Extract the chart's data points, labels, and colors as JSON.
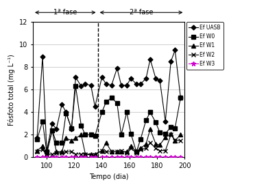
{
  "title_phase1": "1ª fase",
  "title_phase2": "2ª fase",
  "xlabel": "Tempo (dia)",
  "ylabel": "Fósfoto total (mg L⁻¹)",
  "xlim": [
    90,
    200
  ],
  "ylim": [
    0,
    12
  ],
  "yticks": [
    0,
    2,
    4,
    6,
    8,
    10,
    12
  ],
  "xticks": [
    100,
    120,
    140,
    160,
    180,
    200
  ],
  "dashed_vline": 137,
  "phase1_x_start": 90,
  "phase1_x_end": 137,
  "phase2_x_start": 137,
  "phase2_x_end": 200,
  "series": {
    "Ef UASB": {
      "x": [
        93,
        97,
        100,
        104,
        107,
        111,
        114,
        118,
        121,
        125,
        128,
        132,
        135,
        140,
        143,
        147,
        151,
        154,
        158,
        161,
        165,
        168,
        172,
        175,
        179,
        182,
        186,
        190,
        193,
        197
      ],
      "y": [
        1.7,
        8.9,
        0.6,
        3.0,
        2.5,
        4.7,
        4.0,
        2.5,
        7.1,
        6.3,
        6.5,
        6.4,
        4.5,
        7.1,
        6.5,
        6.4,
        7.9,
        6.4,
        6.4,
        7.0,
        6.5,
        6.5,
        7.0,
        8.7,
        7.0,
        6.8,
        3.2,
        8.5,
        9.5,
        5.3
      ],
      "color": "#000000",
      "marker": "D",
      "markersize": 3.5,
      "linestyle": "-",
      "linewidth": 0.8
    },
    "Ef W0": {
      "x": [
        93,
        97,
        100,
        104,
        107,
        111,
        114,
        118,
        121,
        125,
        128,
        132,
        135,
        140,
        143,
        147,
        151,
        154,
        158,
        161,
        165,
        168,
        172,
        175,
        179,
        182,
        186,
        190,
        193,
        197
      ],
      "y": [
        1.6,
        3.2,
        0.5,
        2.4,
        1.3,
        1.3,
        3.9,
        2.6,
        6.3,
        2.8,
        2.0,
        2.0,
        1.9,
        4.0,
        4.9,
        5.3,
        4.8,
        2.0,
        4.0,
        2.1,
        0.5,
        1.6,
        3.3,
        4.0,
        3.1,
        2.2,
        2.1,
        2.7,
        2.6,
        5.3
      ],
      "color": "#000000",
      "marker": "s",
      "markersize": 4.5,
      "linestyle": "-",
      "linewidth": 0.8
    },
    "Ef W1": {
      "x": [
        93,
        97,
        100,
        104,
        107,
        111,
        114,
        118,
        121,
        125,
        128,
        132,
        135,
        140,
        143,
        147,
        151,
        154,
        158,
        161,
        165,
        168,
        172,
        175,
        179,
        182,
        186,
        190,
        193,
        197
      ],
      "y": [
        0.6,
        1.0,
        0.3,
        2.4,
        0.5,
        0.5,
        1.7,
        1.5,
        1.7,
        2.0,
        0.3,
        0.3,
        0.3,
        0.6,
        1.3,
        0.5,
        0.5,
        0.5,
        0.5,
        1.0,
        0.5,
        0.8,
        1.2,
        2.5,
        1.2,
        1.1,
        1.8,
        2.1,
        1.5,
        2.0
      ],
      "color": "#000000",
      "marker": "^",
      "markersize": 4.5,
      "linestyle": "-",
      "linewidth": 0.8
    },
    "Ef W2": {
      "x": [
        93,
        97,
        100,
        104,
        107,
        111,
        114,
        118,
        121,
        125,
        128,
        132,
        135,
        140,
        143,
        147,
        151,
        154,
        158,
        161,
        165,
        168,
        172,
        175,
        179,
        182,
        186,
        190,
        193,
        197
      ],
      "y": [
        0.5,
        0.7,
        0.2,
        0.3,
        0.4,
        0.4,
        0.5,
        0.5,
        0.3,
        0.3,
        0.3,
        0.2,
        0.2,
        0.6,
        0.5,
        0.5,
        0.5,
        0.6,
        0.4,
        0.8,
        0.4,
        0.7,
        0.8,
        1.3,
        0.8,
        0.6,
        0.6,
        2.0,
        1.5,
        1.5
      ],
      "color": "#000000",
      "marker": "x",
      "markersize": 4.5,
      "linestyle": "-",
      "linewidth": 0.8
    },
    "Ef W3": {
      "x": [
        93,
        97,
        100,
        104,
        107,
        111,
        114,
        118,
        121,
        125,
        128,
        132,
        135,
        140,
        143,
        147,
        151,
        154,
        158,
        161,
        165,
        168,
        172,
        175,
        179,
        182,
        186,
        190,
        193,
        197
      ],
      "y": [
        0.05,
        0.05,
        0.05,
        0.05,
        0.05,
        0.05,
        0.05,
        0.05,
        0.05,
        0.05,
        0.05,
        0.05,
        0.05,
        0.05,
        0.05,
        0.05,
        0.05,
        0.05,
        0.05,
        0.05,
        0.05,
        0.05,
        0.05,
        0.05,
        0.05,
        0.05,
        0.05,
        0.05,
        0.05,
        0.05
      ],
      "color": "#CC00CC",
      "marker": "*",
      "markersize": 5,
      "linestyle": "-",
      "linewidth": 0.8
    }
  },
  "legend_labels": [
    "Ef UASB",
    "Ef W0",
    "Ef W1",
    "Ef W2",
    "Ef W3"
  ]
}
